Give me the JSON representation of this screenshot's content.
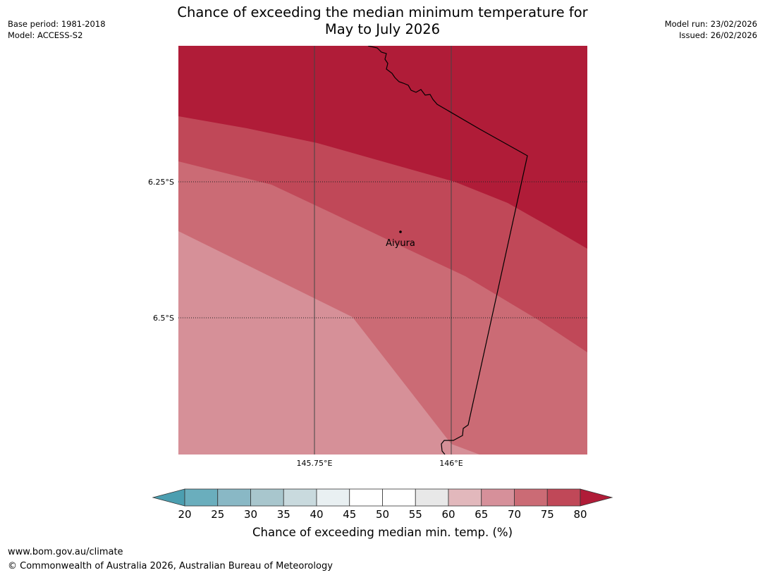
{
  "header": {
    "title_line1": "Chance of exceeding the median minimum temperature for",
    "title_line2": "May to July 2026",
    "base_period": "Base period: 1981-2018",
    "model": "Model: ACCESS-S2",
    "model_run": "Model run: 23/02/2026",
    "issued": "Issued: 26/02/2026"
  },
  "map": {
    "lat_labels": [
      "6.25°S",
      "6.5°S"
    ],
    "lon_labels": [
      "145.75°E",
      "146°E"
    ],
    "place_name": "Aiyura",
    "colors": {
      "gt80": "#b01c38",
      "c75_80": "#c04858",
      "c70_75": "#cb6b75",
      "c65_70": "#d69098"
    }
  },
  "colorbar": {
    "ticks": [
      "20",
      "25",
      "30",
      "35",
      "40",
      "45",
      "50",
      "55",
      "60",
      "65",
      "70",
      "75",
      "80"
    ],
    "colors": [
      "#4b9eb0",
      "#6aaebd",
      "#89b8c5",
      "#a8c6cd",
      "#c9dade",
      "#e9f0f2",
      "#ffffff",
      "#ffffff",
      "#e8e8e8",
      "#e2b8bc",
      "#d6909a",
      "#cb6b75",
      "#c04858",
      "#b01c38"
    ],
    "label": "Chance of exceeding median min. temp. (%)"
  },
  "footer": {
    "url": "www.bom.gov.au/climate",
    "copyright": "© Commonwealth of Australia 2026, Australian Bureau of Meteorology"
  }
}
